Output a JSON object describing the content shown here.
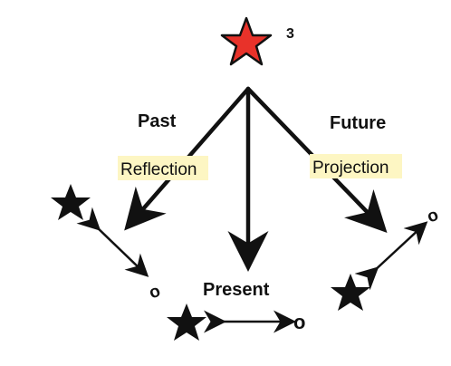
{
  "diagram": {
    "top_marker_number": "3",
    "labels": {
      "past": "Past",
      "future": "Future",
      "present": "Present"
    },
    "highlights": {
      "reflection": "Reflection",
      "projection": "Projection"
    },
    "o_marks": {
      "left": "o",
      "bottom": "o",
      "right": "o"
    },
    "colors": {
      "top_star": "#e8322a",
      "stars": "#111111",
      "arrows": "#111111",
      "highlight_bg": "#fdf6c3"
    }
  }
}
